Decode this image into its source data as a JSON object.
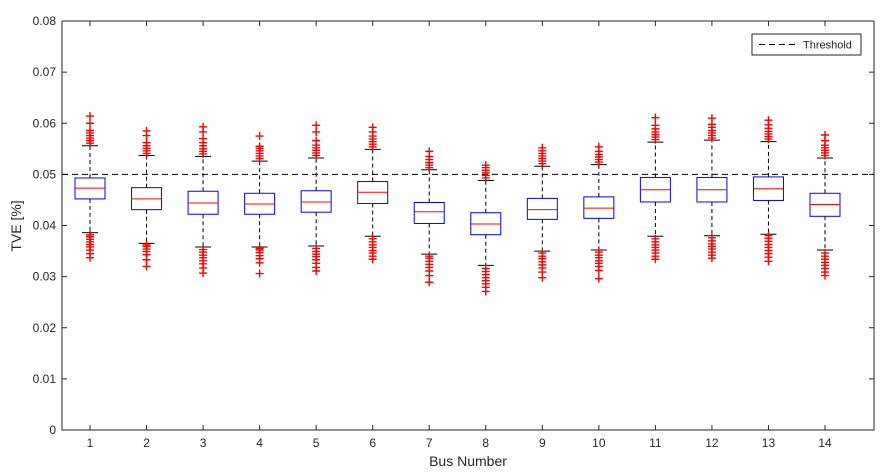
{
  "chart_data": {
    "type": "box",
    "xlabel": "Bus Number",
    "ylabel": "TVE [%]",
    "ylim": [
      0,
      0.08
    ],
    "yticks": [
      "0",
      "0.01",
      "0.02",
      "0.03",
      "0.04",
      "0.05",
      "0.06",
      "0.07",
      "0.08"
    ],
    "categories": [
      "1",
      "2",
      "3",
      "4",
      "5",
      "6",
      "7",
      "8",
      "9",
      "10",
      "11",
      "12",
      "13",
      "14"
    ],
    "threshold": {
      "label": "Threshold",
      "value": 0.05
    },
    "legend_position": "top-right",
    "grid": false,
    "colors": {
      "box": "#0000ff",
      "median": "#ff0000",
      "whisker": "#000000",
      "outlier": "#ff0000",
      "threshold": "#000000"
    },
    "boxes": [
      {
        "category": "1",
        "whisker_low": 0.0386,
        "q1": 0.0452,
        "median": 0.0473,
        "q3": 0.0493,
        "whisker_high": 0.0556,
        "outliers_low": [
          0.0337,
          0.0345,
          0.0352,
          0.0358,
          0.0363,
          0.0368,
          0.0373,
          0.0378,
          0.0382
        ],
        "outliers_high": [
          0.0561,
          0.0566,
          0.0571,
          0.0576,
          0.0581,
          0.0586,
          0.06,
          0.0614
        ]
      },
      {
        "category": "2",
        "whisker_low": 0.0365,
        "q1": 0.0431,
        "median": 0.0452,
        "q3": 0.0474,
        "whisker_high": 0.0537,
        "outliers_low": [
          0.032,
          0.0333,
          0.0343,
          0.0349,
          0.0354,
          0.0359,
          0.0362
        ],
        "outliers_high": [
          0.0541,
          0.0546,
          0.0551,
          0.0556,
          0.0562,
          0.0576,
          0.0585
        ]
      },
      {
        "category": "3",
        "whisker_low": 0.0358,
        "q1": 0.0422,
        "median": 0.0444,
        "q3": 0.0467,
        "whisker_high": 0.0535,
        "outliers_low": [
          0.0307,
          0.0317,
          0.0325,
          0.0331,
          0.0337,
          0.0342,
          0.0348,
          0.0353
        ],
        "outliers_high": [
          0.054,
          0.0545,
          0.055,
          0.0556,
          0.0562,
          0.057,
          0.0583,
          0.0593
        ]
      },
      {
        "category": "4",
        "whisker_low": 0.0358,
        "q1": 0.0422,
        "median": 0.0442,
        "q3": 0.0463,
        "whisker_high": 0.0526,
        "outliers_low": [
          0.0306,
          0.0327,
          0.0335,
          0.0341,
          0.0347,
          0.0352,
          0.0355
        ],
        "outliers_high": [
          0.0531,
          0.0536,
          0.0541,
          0.0546,
          0.0551,
          0.0555,
          0.0575
        ]
      },
      {
        "category": "5",
        "whisker_low": 0.036,
        "q1": 0.0426,
        "median": 0.0446,
        "q3": 0.0468,
        "whisker_high": 0.0532,
        "outliers_low": [
          0.0311,
          0.0318,
          0.0326,
          0.0333,
          0.0339,
          0.0344,
          0.0349,
          0.0355
        ],
        "outliers_high": [
          0.0537,
          0.0542,
          0.0547,
          0.0552,
          0.0557,
          0.0566,
          0.0583,
          0.0596
        ]
      },
      {
        "category": "6",
        "whisker_low": 0.0379,
        "q1": 0.0443,
        "median": 0.0465,
        "q3": 0.0486,
        "whisker_high": 0.0549,
        "outliers_low": [
          0.0334,
          0.034,
          0.0346,
          0.0351,
          0.0357,
          0.0362,
          0.0368,
          0.0374
        ],
        "outliers_high": [
          0.0554,
          0.0559,
          0.0564,
          0.0569,
          0.0575,
          0.0583,
          0.0592
        ]
      },
      {
        "category": "7",
        "whisker_low": 0.0344,
        "q1": 0.0404,
        "median": 0.0427,
        "q3": 0.0445,
        "whisker_high": 0.0509,
        "outliers_low": [
          0.0289,
          0.0302,
          0.0311,
          0.0318,
          0.0324,
          0.033,
          0.0336,
          0.034
        ],
        "outliers_high": [
          0.0513,
          0.0518,
          0.0523,
          0.0529,
          0.0535,
          0.0545
        ]
      },
      {
        "category": "8",
        "whisker_low": 0.0322,
        "q1": 0.0382,
        "median": 0.0403,
        "q3": 0.0425,
        "whisker_high": 0.0488,
        "outliers_low": [
          0.0271,
          0.0279,
          0.0286,
          0.0292,
          0.0298,
          0.0304,
          0.031,
          0.0316
        ],
        "outliers_high": [
          0.0493,
          0.0498,
          0.0503,
          0.0508,
          0.0513,
          0.0518
        ]
      },
      {
        "category": "9",
        "whisker_low": 0.035,
        "q1": 0.0412,
        "median": 0.0431,
        "q3": 0.0453,
        "whisker_high": 0.0516,
        "outliers_low": [
          0.0298,
          0.0309,
          0.0317,
          0.0323,
          0.0329,
          0.0335,
          0.034,
          0.0346
        ],
        "outliers_high": [
          0.0521,
          0.0526,
          0.0531,
          0.0536,
          0.0541,
          0.0546,
          0.0552
        ]
      },
      {
        "category": "10",
        "whisker_low": 0.0352,
        "q1": 0.0414,
        "median": 0.0434,
        "q3": 0.0456,
        "whisker_high": 0.0519,
        "outliers_low": [
          0.0296,
          0.0312,
          0.032,
          0.0326,
          0.0331,
          0.0337,
          0.0342,
          0.0348
        ],
        "outliers_high": [
          0.0524,
          0.0529,
          0.0534,
          0.0539,
          0.0545,
          0.0554
        ]
      },
      {
        "category": "11",
        "whisker_low": 0.0379,
        "q1": 0.0446,
        "median": 0.047,
        "q3": 0.0494,
        "whisker_high": 0.0563,
        "outliers_low": [
          0.0334,
          0.034,
          0.0346,
          0.0352,
          0.0357,
          0.0362,
          0.0368,
          0.0374
        ],
        "outliers_high": [
          0.0568,
          0.0573,
          0.0578,
          0.0583,
          0.0589,
          0.0596,
          0.0611
        ]
      },
      {
        "category": "12",
        "whisker_low": 0.038,
        "q1": 0.0446,
        "median": 0.047,
        "q3": 0.0494,
        "whisker_high": 0.0567,
        "outliers_low": [
          0.0336,
          0.0342,
          0.0348,
          0.0354,
          0.0359,
          0.0364,
          0.037,
          0.0376
        ],
        "outliers_high": [
          0.0571,
          0.0576,
          0.0581,
          0.0586,
          0.0592,
          0.0598,
          0.061
        ]
      },
      {
        "category": "13",
        "whisker_low": 0.0383,
        "q1": 0.0449,
        "median": 0.0472,
        "q3": 0.0495,
        "whisker_high": 0.0564,
        "outliers_low": [
          0.033,
          0.0338,
          0.0345,
          0.0351,
          0.0357,
          0.0363,
          0.0369,
          0.0375,
          0.038
        ],
        "outliers_high": [
          0.0569,
          0.0574,
          0.0579,
          0.0584,
          0.059,
          0.0597,
          0.0606
        ]
      },
      {
        "category": "14",
        "whisker_low": 0.0352,
        "q1": 0.0418,
        "median": 0.0441,
        "q3": 0.0463,
        "whisker_high": 0.0532,
        "outliers_low": [
          0.0302,
          0.0309,
          0.0316,
          0.0322,
          0.0328,
          0.0334,
          0.034,
          0.0346
        ],
        "outliers_high": [
          0.0537,
          0.0542,
          0.0547,
          0.0552,
          0.0557,
          0.0566,
          0.0577
        ]
      }
    ]
  }
}
